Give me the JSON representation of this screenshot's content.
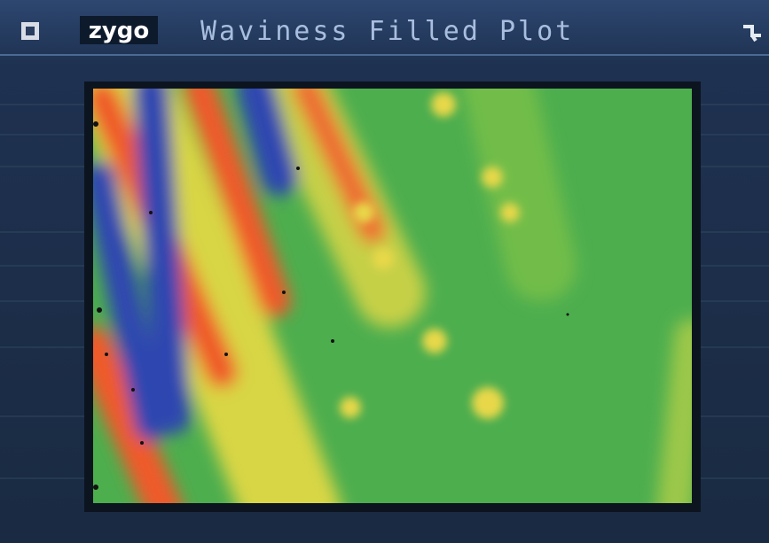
{
  "header": {
    "logo": "zygo",
    "title": "Waviness Filled Plot"
  }
}
